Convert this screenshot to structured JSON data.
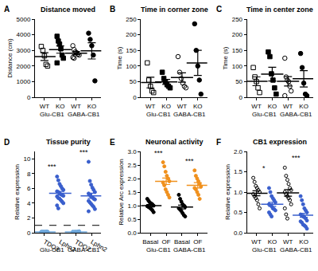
{
  "chart_data": [
    {
      "type": "scatter",
      "panel": "A",
      "title": "Distance moved",
      "y_label": "Distance (cm)",
      "categories": [
        "WT",
        "KO",
        "WT",
        "KO"
      ],
      "groups": [
        "Glu-CB1",
        "GABA-CB1"
      ],
      "ylim": [
        0,
        5000
      ],
      "yticks": [
        0,
        1000,
        2000,
        3000,
        4000,
        5000
      ],
      "values": [
        [
          3250,
          3000,
          2650,
          2100,
          2000
        ],
        [
          3900,
          3600,
          3400,
          3100,
          2700,
          2500,
          2200
        ],
        [
          3300,
          3050,
          2900,
          2850,
          2750,
          2700,
          2550,
          2500
        ],
        [
          4100,
          3700,
          3300,
          2700,
          1050
        ]
      ],
      "means": [
        2600,
        3050,
        2825,
        2970
      ],
      "errors": [
        250,
        230,
        100,
        520
      ],
      "colors": [
        "#000000",
        "#000000",
        "#000000",
        "#000000"
      ],
      "markers": [
        "square-open",
        "square",
        "circle-open",
        "circle"
      ]
    },
    {
      "type": "scatter",
      "panel": "B",
      "title": "Time in corner zone",
      "y_label": "Time (s)",
      "categories": [
        "WT",
        "KO",
        "WT",
        "KO"
      ],
      "groups": [
        "Glu-CB1",
        "GABA-CB1"
      ],
      "ylim": [
        0,
        250
      ],
      "yticks": [
        0,
        50,
        100,
        150,
        200,
        250
      ],
      "values": [
        [
          110,
          55,
          35,
          20,
          15
        ],
        [
          80,
          60,
          50,
          40,
          35,
          30
        ],
        [
          130,
          80,
          60,
          45,
          35,
          30
        ],
        [
          235,
          150,
          100,
          55,
          10
        ]
      ],
      "means": [
        47,
        49,
        63,
        110
      ],
      "errors": [
        17,
        8,
        15,
        40
      ],
      "colors": [
        "#000000",
        "#000000",
        "#000000",
        "#000000"
      ],
      "markers": [
        "square-open",
        "square",
        "circle-open",
        "circle"
      ]
    },
    {
      "type": "scatter",
      "panel": "C",
      "title": "Time in center zone",
      "y_label": "Time (s)",
      "categories": [
        "WT",
        "KO",
        "WT",
        "KO"
      ],
      "groups": [
        "Glu-CB1",
        "GABA-CB1"
      ],
      "ylim": [
        0,
        250
      ],
      "yticks": [
        0,
        50,
        100,
        150,
        200,
        250
      ],
      "values": [
        [
          95,
          65,
          50,
          30,
          15
        ],
        [
          145,
          130,
          75,
          55,
          30,
          10
        ],
        [
          125,
          65,
          55,
          50,
          35,
          20,
          5
        ],
        [
          140,
          95,
          45,
          10,
          5
        ]
      ],
      "means": [
        51,
        74,
        51,
        59
      ],
      "errors": [
        14,
        22,
        15,
        26
      ],
      "colors": [
        "#000000",
        "#000000",
        "#000000",
        "#000000"
      ],
      "markers": [
        "square-open",
        "square",
        "circle-open",
        "circle"
      ]
    },
    {
      "type": "scatter",
      "panel": "D",
      "title": "Tissue purity",
      "y_label": "Relative expression",
      "categories": [
        "TDO2",
        "Lphn2",
        "TDO2",
        "Lphn2"
      ],
      "groups": [
        "Glu-CB1",
        "GABA-CB1"
      ],
      "ylim": [
        0,
        11
      ],
      "yticks": [
        0,
        2,
        4,
        6,
        8,
        10
      ],
      "values": [
        [
          0.05,
          0.08,
          0.1,
          0.12,
          0.15,
          0.06,
          0.09,
          0.11,
          0.13,
          0.07,
          0.1,
          0.14,
          0.08,
          0.12,
          0.05,
          0.1,
          0.09,
          0.11,
          0.13,
          0.06
        ],
        [
          7.6,
          7.1,
          6.6,
          6.3,
          6.0,
          5.8,
          5.6,
          5.5,
          5.3,
          5.2,
          5.1,
          5.0,
          4.9,
          4.7,
          4.6,
          4.4,
          4.2,
          4.0,
          3.7,
          3.3
        ],
        [
          0.05,
          0.08,
          0.1,
          0.12,
          0.15,
          0.2,
          0.07,
          0.1,
          0.13,
          0.09,
          0.11,
          0.06,
          0.14,
          0.08
        ],
        [
          9.6,
          7.0,
          6.5,
          6.1,
          5.8,
          5.5,
          5.3,
          5.1,
          4.9,
          4.8,
          4.6,
          4.5,
          4.3,
          4.1,
          3.9,
          3.7,
          3.5,
          3.2,
          2.9
        ]
      ],
      "means": [
        0.1,
        5.35,
        0.1,
        5.0
      ],
      "errors": [
        0.01,
        0.25,
        0.01,
        0.35
      ],
      "colors": [
        "#6fa8dc",
        "#3a5fcd",
        "#6fa8dc",
        "#3a5fcd"
      ],
      "markers": [
        "circle",
        "circle",
        "circle",
        "circle"
      ],
      "reference_line": 1,
      "line_style": "dashed",
      "annotations": [
        {
          "text": "***",
          "between": [
            0,
            1
          ]
        },
        {
          "text": "***",
          "between": [
            2,
            3
          ]
        }
      ]
    },
    {
      "type": "scatter",
      "panel": "E",
      "title": "Neuronal activity",
      "y_label": "Relative Arc expression",
      "categories": [
        "Basal",
        "OF",
        "Basal",
        "OF"
      ],
      "groups": [
        "Glu-CB1",
        "GABA-CB1"
      ],
      "ylim": [
        0,
        3
      ],
      "yticks": [
        {
          "value": 0,
          "label": "0.0"
        },
        0.5,
        {
          "value": 1,
          "label": "1.0"
        },
        1.5,
        {
          "value": 2,
          "label": "2.0"
        },
        2.5,
        {
          "value": 3,
          "label": "3.0"
        }
      ],
      "values": [
        [
          1.25,
          1.18,
          1.12,
          1.08,
          1.05,
          1.0,
          0.98,
          0.95,
          0.92,
          0.88,
          0.83,
          0.76
        ],
        [
          2.6,
          2.45,
          2.25,
          2.1,
          2.0,
          1.9,
          1.85,
          1.75,
          1.6,
          1.5,
          1.4,
          1.3
        ],
        [
          1.4,
          1.25,
          1.15,
          1.05,
          1.0,
          0.95,
          0.9,
          0.85,
          0.8,
          0.72,
          0.65,
          0.6
        ],
        [
          2.3,
          2.1,
          2.0,
          1.9,
          1.8,
          1.7,
          1.65,
          1.6,
          1.5,
          1.4,
          1.25
        ]
      ],
      "means": [
        1.0,
        1.9,
        0.95,
        1.75
      ],
      "errors": [
        0.04,
        0.12,
        0.07,
        0.1
      ],
      "colors": [
        "#000000",
        "#f0901c",
        "#000000",
        "#f0901c"
      ],
      "markers": [
        "circle",
        "circle",
        "circle",
        "circle"
      ],
      "annotations": [
        {
          "text": "***",
          "between": [
            0,
            1
          ]
        },
        {
          "text": "***",
          "between": [
            2,
            3
          ]
        }
      ]
    },
    {
      "type": "scatter",
      "panel": "F",
      "title": "CB1 expression",
      "y_label": "Relative expression",
      "categories": [
        "WT",
        "KO",
        "WT",
        "KO"
      ],
      "groups": [
        "Glu-CB1",
        "GABA-CB1"
      ],
      "ylim": [
        0,
        2
      ],
      "yticks": [
        {
          "value": 0,
          "label": "0.0"
        },
        0.5,
        {
          "value": 1,
          "label": "1.0"
        },
        1.5,
        {
          "value": 2,
          "label": "2.0"
        }
      ],
      "values": [
        [
          1.35,
          1.25,
          1.15,
          1.1,
          1.05,
          1.0,
          0.95,
          0.9,
          0.85,
          0.8,
          0.7,
          0.6
        ],
        [
          1.1,
          1.0,
          0.9,
          0.85,
          0.8,
          0.75,
          0.7,
          0.68,
          0.65,
          0.6,
          0.58,
          0.55,
          0.5,
          0.45,
          0.4
        ],
        [
          1.6,
          1.4,
          1.3,
          1.2,
          1.1,
          1.05,
          1.0,
          0.95,
          0.9,
          0.85,
          0.8,
          0.7,
          0.6,
          0.45,
          0.35
        ],
        [
          0.9,
          0.8,
          0.7,
          0.6,
          0.55,
          0.5,
          0.45,
          0.42,
          0.4,
          0.38,
          0.35,
          0.3,
          0.28,
          0.25,
          0.2,
          0.18,
          0.15,
          0.1
        ]
      ],
      "means": [
        0.97,
        0.7,
        0.98,
        0.43
      ],
      "errors": [
        0.06,
        0.05,
        0.08,
        0.05
      ],
      "colors": [
        "#000000",
        "#3a5fcd",
        "#000000",
        "#3a5fcd"
      ],
      "markers": [
        "circle-open",
        "circle",
        "circle-open",
        "circle"
      ],
      "annotations": [
        {
          "text": "*",
          "between": [
            0,
            1
          ]
        },
        {
          "text": "***",
          "between": [
            2,
            3
          ]
        }
      ]
    }
  ]
}
